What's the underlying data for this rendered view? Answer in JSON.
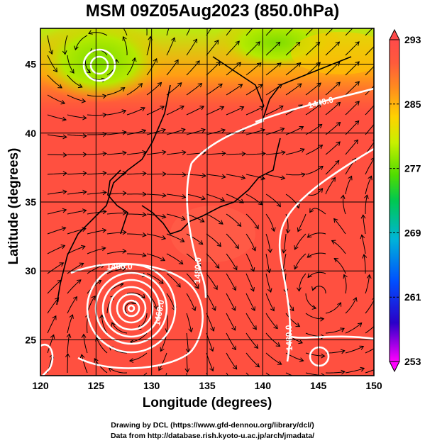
{
  "title": "MSM 09Z05Aug2023 (850.0hPa)",
  "x_axis": {
    "label": "Longitude (degrees)",
    "min": 120,
    "max": 150,
    "ticks": [
      "120",
      "125",
      "130",
      "135",
      "140",
      "145",
      "150"
    ]
  },
  "y_axis": {
    "label": "Latitude  (degrees)",
    "min": 22.4,
    "max": 47.6,
    "ticks": [
      "25",
      "30",
      "35",
      "40",
      "45"
    ]
  },
  "colorbar": {
    "min": 253,
    "max": 293,
    "labels": [
      "293",
      "285",
      "277",
      "269",
      "261",
      "253"
    ],
    "colors": [
      "#ff00ff",
      "#2a00c8",
      "#0050ff",
      "#00b4d8",
      "#00c850",
      "#50dc00",
      "#c8f000",
      "#ffd200",
      "#ff8c1e",
      "#ff5a3c",
      "#ff4a4a"
    ]
  },
  "contours": [
    {
      "label": "1400.0"
    },
    {
      "label": "1440.0"
    },
    {
      "label": "1480.0"
    },
    {
      "label": "1480.0"
    },
    {
      "label": "1460.0"
    }
  ],
  "credits": [
    "Drawing by DCL (https://www.gfd-dennou.org/library/dcl/)",
    "Data from http://database.rish.kyoto-u.ac.jp/arch/jmadata/"
  ]
}
